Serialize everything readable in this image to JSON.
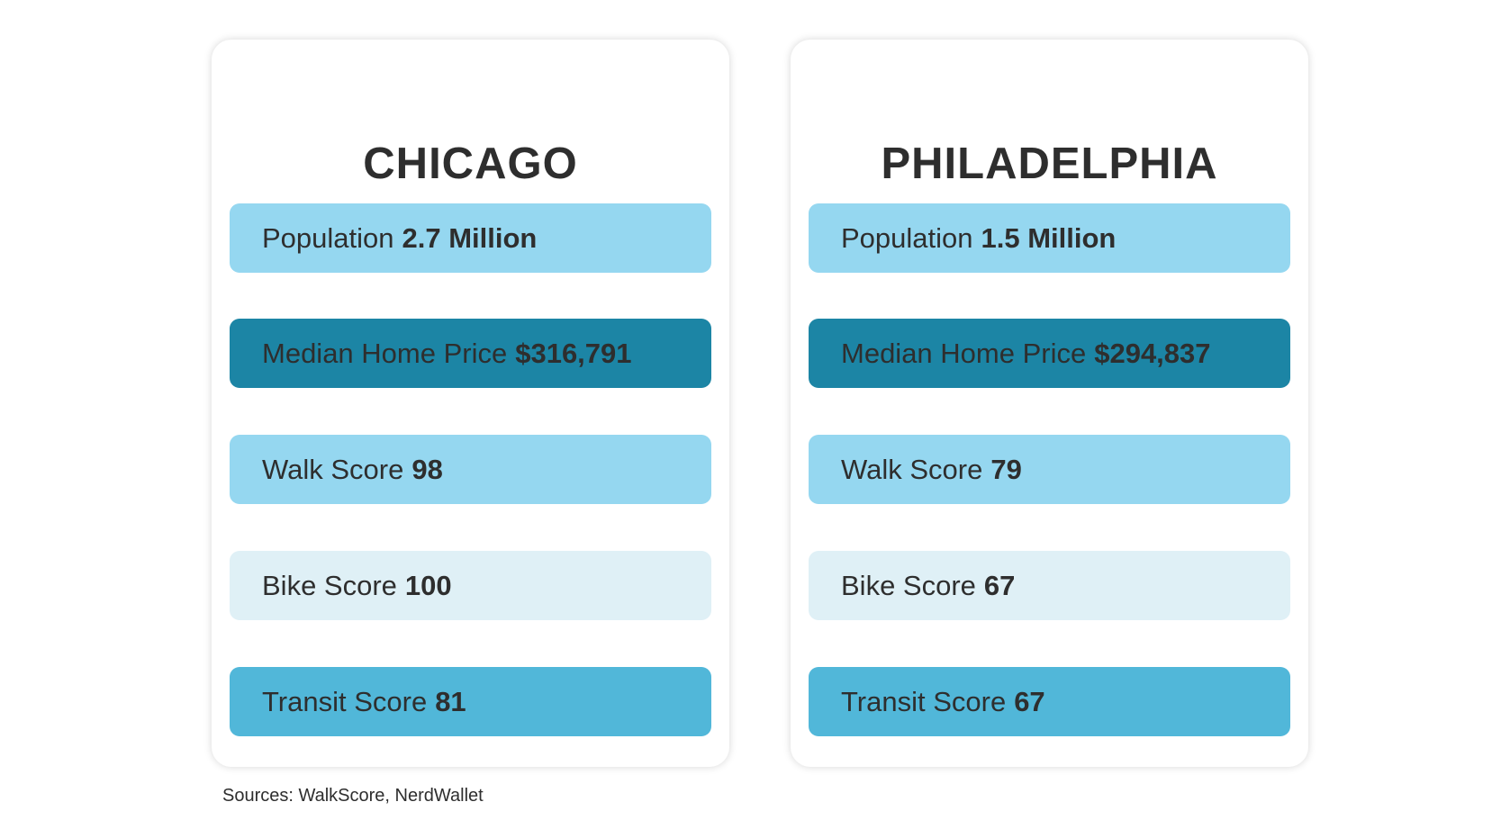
{
  "colors": {
    "light_blue": "#95d7f0",
    "dark_teal": "#1c85a5",
    "pale_blue": "#dff0f6",
    "mid_blue": "#51b7d9",
    "text": "#2e2e2e"
  },
  "cities": [
    {
      "name": "CHICAGO",
      "stats": [
        {
          "label": "Population",
          "value": "2.7 Million"
        },
        {
          "label": "Median Home Price",
          "value": "$316,791"
        },
        {
          "label": "Walk Score",
          "value": "98"
        },
        {
          "label": "Bike Score",
          "value": "100"
        },
        {
          "label": "Transit Score",
          "value": "81"
        }
      ]
    },
    {
      "name": "PHILADELPHIA",
      "stats": [
        {
          "label": "Population",
          "value": "1.5 Million"
        },
        {
          "label": "Median Home Price",
          "value": "$294,837"
        },
        {
          "label": "Walk Score",
          "value": "79"
        },
        {
          "label": "Bike Score",
          "value": "67"
        },
        {
          "label": "Transit Score",
          "value": "67"
        }
      ]
    }
  ],
  "sources": "Sources: WalkScore, NerdWallet"
}
